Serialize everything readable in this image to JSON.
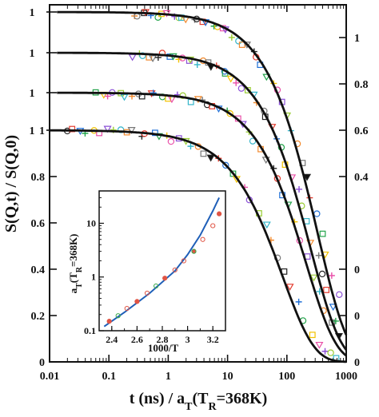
{
  "chart_data": [
    {
      "type": "scatter",
      "title": "",
      "xlabel": "t (ns)  /  a_T(T_R=368K)",
      "ylabel": "S(Q,t) / S(Q,0)",
      "x_scale": "log",
      "xlim": [
        0.01,
        1000
      ],
      "x_ticks": [
        "0.01",
        "0.1",
        "1",
        "10",
        "100",
        "1000"
      ],
      "left_ticks": [
        "0",
        "0.2",
        "0.4",
        "0.6",
        "0.8",
        "1"
      ],
      "right_ticks": [
        "0",
        "0",
        "0",
        "0.4",
        "0.6",
        "0.8",
        "1"
      ],
      "stacked_offsets_label": [
        "1",
        "1",
        "1",
        "1"
      ],
      "stack_offsets": [
        0,
        0.2,
        0.4,
        0.6
      ],
      "legend": "none",
      "series": [
        {
          "name": "",
          "tau": 85,
          "beta": 0.82,
          "offset": 0.0,
          "color": "#111111",
          "x": [
            0.02,
            0.1,
            0.3,
            1,
            3,
            10,
            20,
            40,
            80,
            150,
            250,
            400
          ],
          "y": [
            1.0,
            0.99,
            0.98,
            0.96,
            0.93,
            0.85,
            0.78,
            0.66,
            0.48,
            0.32,
            0.2,
            0.1
          ]
        },
        {
          "name": "",
          "tau": 210,
          "beta": 0.85,
          "offset": 0.2,
          "color": "#111111",
          "x": [
            0.05,
            0.3,
            1,
            3,
            10,
            30,
            60,
            100,
            200,
            300,
            500
          ],
          "y": [
            1.0,
            0.99,
            0.98,
            0.96,
            0.91,
            0.78,
            0.66,
            0.56,
            0.38,
            0.28,
            0.17
          ]
        },
        {
          "name": "",
          "tau": 250,
          "beta": 0.85,
          "offset": 0.4,
          "color": "#111111",
          "x": [
            0.3,
            1,
            3,
            10,
            30,
            60,
            100,
            200,
            300,
            500
          ],
          "y": [
            0.99,
            0.98,
            0.96,
            0.92,
            0.8,
            0.7,
            0.6,
            0.42,
            0.32,
            0.2
          ]
        },
        {
          "name": "",
          "tau": 330,
          "beta": 0.85,
          "offset": 0.6,
          "color": "#111111",
          "x": [
            0.3,
            1,
            3,
            10,
            30,
            60,
            100,
            200,
            300,
            500
          ],
          "y": [
            1.0,
            0.99,
            0.97,
            0.93,
            0.84,
            0.75,
            0.66,
            0.5,
            0.4,
            0.27
          ]
        }
      ],
      "marker_colors": [
        "#222222",
        "#e33b2e",
        "#1f6fd6",
        "#22a34a",
        "#f2c200",
        "#e94fa8",
        "#8a4fd6",
        "#99cc33",
        "#33b5c9",
        "#f28a2e",
        "#777777"
      ]
    },
    {
      "type": "scatter",
      "inset": true,
      "title": "",
      "xlabel": "1000/T",
      "ylabel": "a_T(T_R=368K)",
      "y_scale": "log",
      "xlim": [
        2.3,
        3.3
      ],
      "ylim": [
        0.1,
        40
      ],
      "x_ticks": [
        "2.4",
        "2.6",
        "2.8",
        "3",
        "3.2"
      ],
      "y_ticks": [
        "0.1",
        "1",
        "10"
      ],
      "series": [
        {
          "name": "",
          "color": "#1f5fb8",
          "style": "line",
          "x": [
            2.34,
            2.5,
            2.7,
            2.9,
            3.0,
            3.1,
            3.2,
            3.25
          ],
          "y": [
            0.12,
            0.22,
            0.5,
            1.3,
            2.6,
            6.0,
            17,
            30
          ]
        },
        {
          "name": "",
          "color": "#e05545",
          "style": "markers",
          "x": [
            2.38,
            2.45,
            2.52,
            2.6,
            2.68,
            2.75,
            2.82,
            2.9,
            2.97,
            3.05,
            3.12,
            3.2,
            3.25
          ],
          "y": [
            0.15,
            0.19,
            0.26,
            0.35,
            0.5,
            0.68,
            0.95,
            1.35,
            2.0,
            3.0,
            5.0,
            9.0,
            15
          ]
        }
      ]
    }
  ]
}
